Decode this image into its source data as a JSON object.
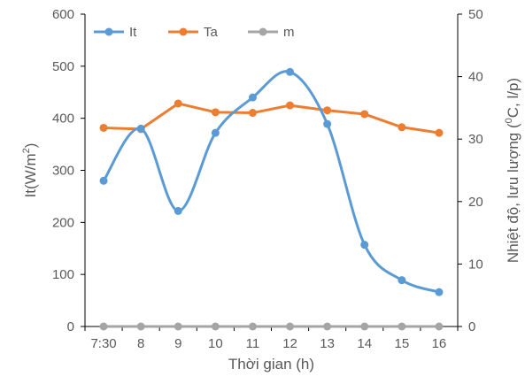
{
  "chart_data": {
    "type": "line",
    "categories": [
      "7:30",
      "8",
      "9",
      "10",
      "11",
      "12",
      "13",
      "14",
      "15",
      "16"
    ],
    "x_label": "Thời gian (h)",
    "y_left": {
      "title_parts": [
        "It(W/m",
        "2",
        ")"
      ],
      "min": 0,
      "max": 600,
      "step": 100,
      "ticks": [
        "0",
        "100",
        "200",
        "300",
        "400",
        "500",
        "600"
      ]
    },
    "y_right": {
      "title_parts": [
        "Nhiệt độ, lưu lượng (",
        "0",
        "C, l/p)"
      ],
      "min": 0,
      "max": 50,
      "step": 10,
      "ticks": [
        "0",
        "10",
        "20",
        "30",
        "40",
        "50"
      ]
    },
    "grid": false,
    "legend_position": "top-left",
    "series": [
      {
        "name": "It",
        "axis": "left",
        "color": "#5B9BD5",
        "smooth": true,
        "values": [
          280,
          380,
          222,
          372,
          440,
          489,
          389,
          157,
          89,
          66
        ]
      },
      {
        "name": "Ta",
        "axis": "right",
        "color": "#ED7D31",
        "smooth": false,
        "values": [
          31.8,
          31.6,
          35.7,
          34.3,
          34.2,
          35.4,
          34.6,
          34.0,
          31.9,
          31.0
        ]
      },
      {
        "name": "m",
        "axis": "right",
        "color": "#A5A5A5",
        "smooth": false,
        "values": [
          0,
          0,
          0,
          0,
          0,
          0,
          0,
          0,
          0,
          0
        ]
      }
    ]
  }
}
